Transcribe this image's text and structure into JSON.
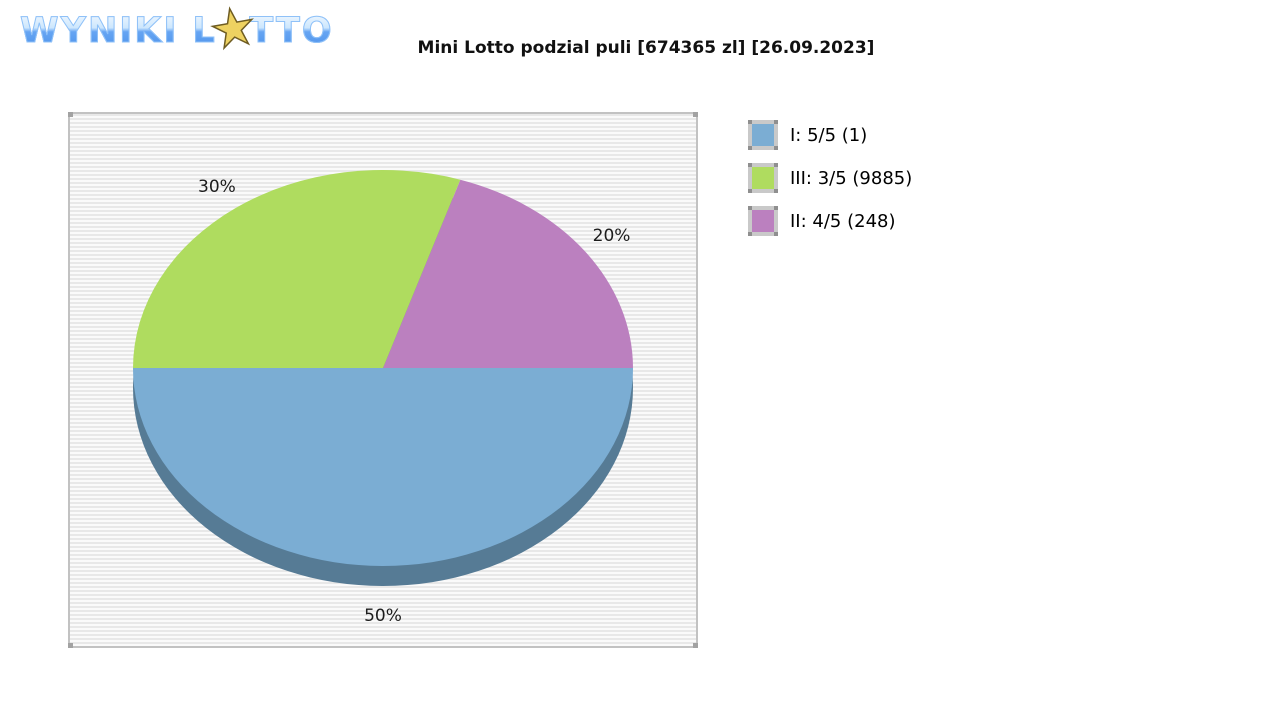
{
  "logo": {
    "word1": "WYNIKI",
    "word2_prefix": "L",
    "word2_suffix": "TTO",
    "star_glyph": "★"
  },
  "header": {
    "title": "Mini Lotto podzial puli [674365 zl] [26.09.2023]"
  },
  "legend": {
    "items": [
      {
        "label": "I: 5/5 (1)",
        "color": "#7badd3"
      },
      {
        "label": "III: 3/5 (9885)",
        "color": "#afdc5f"
      },
      {
        "label": "II: 4/5 (248)",
        "color": "#bb80bf"
      }
    ]
  },
  "chart_data": {
    "type": "pie",
    "title": "Mini Lotto podzial puli [674365 zl] [26.09.2023]",
    "style": "3d",
    "start_angle_deg": 180,
    "direction": "counterclockwise",
    "depth_color": "#567b95",
    "legend_position": "right",
    "slices": [
      {
        "name": "I: 5/5",
        "tier": "I",
        "winners": 1,
        "percent": 50,
        "percent_label": "50%",
        "color": "#7badd3"
      },
      {
        "name": "II: 4/5",
        "tier": "II",
        "winners": 248,
        "percent": 20,
        "percent_label": "20%",
        "color": "#bb80bf"
      },
      {
        "name": "III: 3/5",
        "tier": "III",
        "winners": 9885,
        "percent": 30,
        "percent_label": "30%",
        "color": "#afdc5f"
      }
    ],
    "pool_zl": 674365,
    "date": "26.09.2023"
  }
}
